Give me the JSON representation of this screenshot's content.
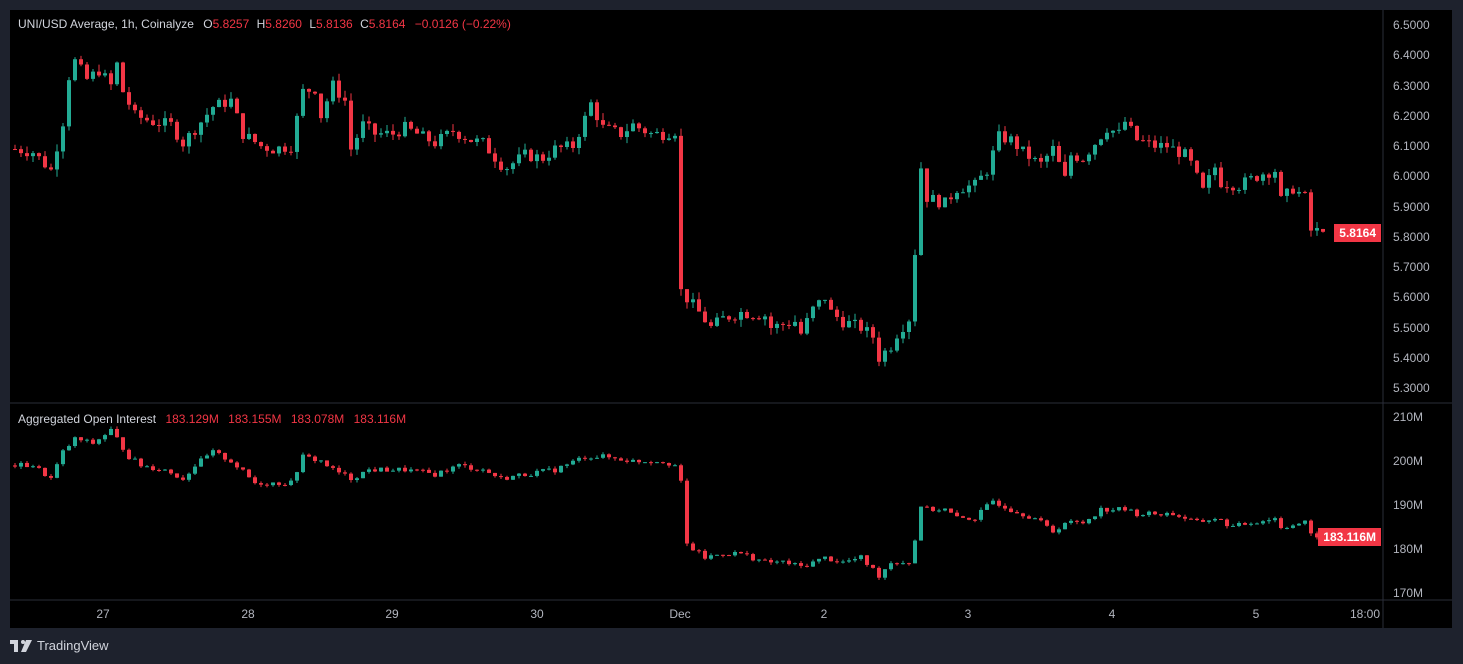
{
  "header": {
    "symbol": "UNI/USD Average, 1h, Coinalyze",
    "o_label": "O",
    "o": "5.8257",
    "h_label": "H",
    "h": "5.8260",
    "l_label": "L",
    "l": "5.8136",
    "c_label": "C",
    "c": "5.8164",
    "change": "−0.0126 (−0.22%)"
  },
  "oi_header": {
    "title": "Aggregated Open Interest",
    "o": "183.129M",
    "h": "183.155M",
    "l": "183.078M",
    "c": "183.116M"
  },
  "price_tag": "5.8164",
  "oi_tag": "183.116M",
  "brand": "TradingView",
  "colors": {
    "up": "#22ab94",
    "down": "#f23645",
    "grid": "#2a2e39"
  },
  "chart_data": [
    {
      "type": "candlestick",
      "title": "UNI/USD Average, 1h, Coinalyze",
      "x_unit": "hours since first visible bar",
      "ylim": [
        5.3,
        6.5
      ],
      "y_ticks": [
        "6.5000",
        "6.4000",
        "6.3000",
        "6.2000",
        "6.1000",
        "6.0000",
        "5.9000",
        "5.8000",
        "5.7000",
        "5.6000",
        "5.5000",
        "5.4000",
        "5.3000"
      ],
      "x_ticks": [
        "27",
        "28",
        "29",
        "30",
        "Dec",
        "2",
        "3",
        "4",
        "5",
        "18:00"
      ],
      "last_bar": {
        "open": 5.8257,
        "high": 5.826,
        "low": 5.8136,
        "close": 5.8164
      },
      "close_keypoints": [
        [
          0,
          6.09
        ],
        [
          3,
          6.08
        ],
        [
          6,
          6.02
        ],
        [
          8,
          6.18
        ],
        [
          9,
          6.33
        ],
        [
          10,
          6.38
        ],
        [
          12,
          6.32
        ],
        [
          14,
          6.35
        ],
        [
          16,
          6.3
        ],
        [
          17,
          6.37
        ],
        [
          18,
          6.28
        ],
        [
          20,
          6.2
        ],
        [
          23,
          6.18
        ],
        [
          26,
          6.17
        ],
        [
          28,
          6.11
        ],
        [
          31,
          6.18
        ],
        [
          33,
          6.23
        ],
        [
          36,
          6.25
        ],
        [
          38,
          6.14
        ],
        [
          41,
          6.1
        ],
        [
          43,
          6.09
        ],
        [
          46,
          6.1
        ],
        [
          48,
          6.28
        ],
        [
          50,
          6.29
        ],
        [
          51,
          6.2
        ],
        [
          53,
          6.3
        ],
        [
          55,
          6.25
        ],
        [
          56,
          6.09
        ],
        [
          58,
          6.17
        ],
        [
          60,
          6.14
        ],
        [
          63,
          6.14
        ],
        [
          65,
          6.16
        ],
        [
          68,
          6.13
        ],
        [
          70,
          6.11
        ],
        [
          73,
          6.15
        ],
        [
          76,
          6.12
        ],
        [
          78,
          6.11
        ],
        [
          81,
          6.04
        ],
        [
          82,
          6.03
        ],
        [
          85,
          6.07
        ],
        [
          88,
          6.06
        ],
        [
          90,
          6.09
        ],
        [
          93,
          6.1
        ],
        [
          95,
          6.19
        ],
        [
          96,
          6.24
        ],
        [
          98,
          6.16
        ],
        [
          101,
          6.14
        ],
        [
          103,
          6.17
        ],
        [
          106,
          6.14
        ],
        [
          108,
          6.14
        ],
        [
          110,
          6.15
        ],
        [
          111,
          5.62
        ],
        [
          114,
          5.55
        ],
        [
          116,
          5.5
        ],
        [
          118,
          5.53
        ],
        [
          121,
          5.55
        ],
        [
          125,
          5.54
        ],
        [
          126,
          5.5
        ],
        [
          130,
          5.52
        ],
        [
          131,
          5.48
        ],
        [
          133,
          5.56
        ],
        [
          135,
          5.6
        ],
        [
          136,
          5.55
        ],
        [
          138,
          5.52
        ],
        [
          141,
          5.5
        ],
        [
          143,
          5.47
        ],
        [
          144,
          5.4
        ],
        [
          146,
          5.44
        ],
        [
          147,
          5.48
        ],
        [
          149,
          5.53
        ],
        [
          150,
          5.75
        ],
        [
          151,
          6.03
        ],
        [
          152,
          5.93
        ],
        [
          155,
          5.91
        ],
        [
          157,
          5.96
        ],
        [
          160,
          5.97
        ],
        [
          162,
          6.02
        ],
        [
          164,
          6.13
        ],
        [
          166,
          6.12
        ],
        [
          168,
          6.08
        ],
        [
          170,
          6.05
        ],
        [
          171,
          6.04
        ],
        [
          173,
          6.09
        ],
        [
          175,
          5.99
        ],
        [
          176,
          6.07
        ],
        [
          178,
          6.06
        ],
        [
          180,
          6.11
        ],
        [
          182,
          6.16
        ],
        [
          184,
          6.14
        ],
        [
          185,
          6.18
        ],
        [
          187,
          6.12
        ],
        [
          190,
          6.1
        ],
        [
          192,
          6.1
        ],
        [
          195,
          6.07
        ],
        [
          196,
          6.04
        ],
        [
          198,
          5.95
        ],
        [
          200,
          6.03
        ],
        [
          201,
          5.98
        ],
        [
          204,
          5.97
        ],
        [
          206,
          5.99
        ],
        [
          208,
          6.01
        ],
        [
          210,
          6.02
        ],
        [
          211,
          5.92
        ],
        [
          213,
          5.96
        ],
        [
          215,
          5.93
        ],
        [
          216,
          5.82
        ],
        [
          218,
          5.8164
        ]
      ]
    },
    {
      "type": "candlestick",
      "title": "Aggregated Open Interest",
      "unit": "M",
      "ylim": [
        170,
        210
      ],
      "y_ticks": [
        "210M",
        "200M",
        "190M",
        "180M",
        "170M"
      ],
      "last_bar": {
        "open": 183.129,
        "high": 183.155,
        "low": 183.078,
        "close": 183.116
      },
      "close_keypoints": [
        [
          0,
          199
        ],
        [
          3,
          199
        ],
        [
          6,
          196
        ],
        [
          8,
          202
        ],
        [
          10,
          205
        ],
        [
          13,
          204
        ],
        [
          16,
          207
        ],
        [
          19,
          201
        ],
        [
          21,
          199
        ],
        [
          25,
          198
        ],
        [
          28,
          196
        ],
        [
          30,
          199
        ],
        [
          33,
          202
        ],
        [
          36,
          200
        ],
        [
          40,
          195
        ],
        [
          43,
          195
        ],
        [
          46,
          195
        ],
        [
          48,
          201
        ],
        [
          51,
          200
        ],
        [
          53,
          198
        ],
        [
          56,
          196
        ],
        [
          59,
          198
        ],
        [
          65,
          198
        ],
        [
          70,
          197
        ],
        [
          74,
          199
        ],
        [
          78,
          198
        ],
        [
          81,
          196
        ],
        [
          85,
          197
        ],
        [
          90,
          198
        ],
        [
          95,
          201
        ],
        [
          98,
          201
        ],
        [
          103,
          200
        ],
        [
          108,
          200
        ],
        [
          110,
          199
        ],
        [
          111,
          195
        ],
        [
          112,
          181
        ],
        [
          115,
          178
        ],
        [
          118,
          179
        ],
        [
          121,
          179
        ],
        [
          125,
          177
        ],
        [
          128,
          177
        ],
        [
          131,
          176
        ],
        [
          135,
          178
        ],
        [
          138,
          177
        ],
        [
          141,
          178
        ],
        [
          144,
          174
        ],
        [
          146,
          177
        ],
        [
          149,
          177
        ],
        [
          150,
          182
        ],
        [
          151,
          190
        ],
        [
          152,
          189
        ],
        [
          155,
          189
        ],
        [
          157,
          187
        ],
        [
          160,
          187
        ],
        [
          163,
          191
        ],
        [
          166,
          189
        ],
        [
          170,
          187
        ],
        [
          173,
          184
        ],
        [
          175,
          186
        ],
        [
          178,
          186
        ],
        [
          181,
          189
        ],
        [
          185,
          189
        ],
        [
          187,
          188
        ],
        [
          190,
          188
        ],
        [
          193,
          188
        ],
        [
          197,
          186
        ],
        [
          200,
          187
        ],
        [
          203,
          185
        ],
        [
          206,
          186
        ],
        [
          210,
          187
        ],
        [
          211,
          185
        ],
        [
          215,
          186
        ],
        [
          216,
          183
        ],
        [
          218,
          183.116
        ]
      ]
    }
  ]
}
